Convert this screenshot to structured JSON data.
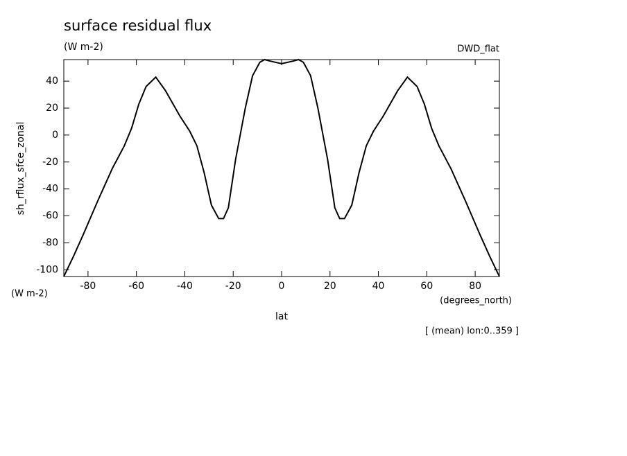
{
  "chart_data": {
    "type": "line",
    "title": "surface residual flux",
    "subtitle": "(W m-2)",
    "dataset": "DWD_flat",
    "y_label": "sh_rflux_sfce_zonal",
    "y_units": "(W m-2)",
    "x_label": "lat",
    "x_units": "(degrees_north)",
    "annotation": "[ (mean) lon:0..359 ]",
    "x": [
      -90,
      -86,
      -82,
      -76,
      -70,
      -65,
      -62,
      -59,
      -56,
      -52,
      -48,
      -42,
      -38,
      -35,
      -32,
      -29,
      -26,
      -24,
      -22,
      -19,
      -15,
      -12,
      -9,
      -7,
      -5,
      0,
      5,
      7,
      9,
      12,
      15,
      19,
      22,
      24,
      26,
      29,
      32,
      35,
      38,
      42,
      48,
      52,
      56,
      59,
      62,
      65,
      70,
      76,
      82,
      86,
      90
    ],
    "series": [
      {
        "color": "#000000",
        "values": [
          -105,
          -90,
          -74,
          -49,
          -25,
          -8,
          5,
          23,
          36,
          43,
          33,
          14,
          3,
          -8,
          -28,
          -52,
          -62,
          -62,
          -54,
          -18,
          20,
          44,
          54,
          56,
          55,
          53,
          55,
          56,
          54,
          44,
          20,
          -18,
          -54,
          -62,
          -62,
          -52,
          -28,
          -8,
          3,
          14,
          33,
          43,
          36,
          23,
          5,
          -8,
          -25,
          -49,
          -74,
          -90,
          -105
        ]
      }
    ],
    "xlim": [
      -90,
      90
    ],
    "ylim": [
      -105,
      56
    ],
    "xticks": [
      -80,
      -60,
      -40,
      -20,
      0,
      20,
      40,
      60,
      80
    ],
    "yticks": [
      -100,
      -80,
      -60,
      -40,
      -20,
      0,
      20,
      40
    ]
  }
}
